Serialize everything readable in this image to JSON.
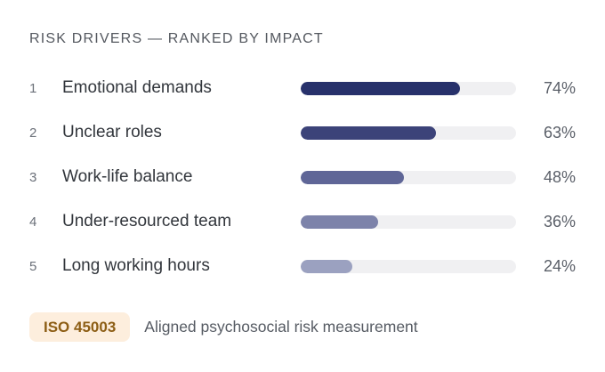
{
  "header": {
    "title": "RISK DRIVERS — RANKED BY IMPACT"
  },
  "chart_data": {
    "type": "bar",
    "orientation": "horizontal",
    "title": "RISK DRIVERS — RANKED BY IMPACT",
    "categories": [
      "Emotional demands",
      "Unclear roles",
      "Work-life balance",
      "Under-resourced team",
      "Long working hours"
    ],
    "values": [
      74,
      63,
      48,
      36,
      24
    ],
    "value_suffix": "%",
    "xlim": [
      0,
      100
    ],
    "grid": false,
    "legend": false,
    "bar_colors": [
      "#27316b",
      "#3c4379",
      "#5f6697",
      "#7d83aa",
      "#9ba1c0"
    ],
    "track_color": "#f0f0f2"
  },
  "rows": [
    {
      "rank": "1",
      "label": "Emotional demands",
      "pct": 74,
      "pct_label": "74%",
      "color": "#27316b"
    },
    {
      "rank": "2",
      "label": "Unclear roles",
      "pct": 63,
      "pct_label": "63%",
      "color": "#3c4379"
    },
    {
      "rank": "3",
      "label": "Work-life balance",
      "pct": 48,
      "pct_label": "48%",
      "color": "#5f6697"
    },
    {
      "rank": "4",
      "label": "Under-resourced team",
      "pct": 36,
      "pct_label": "36%",
      "color": "#7d83aa"
    },
    {
      "rank": "5",
      "label": "Long working hours",
      "pct": 24,
      "pct_label": "24%",
      "color": "#9ba1c0"
    }
  ],
  "footer": {
    "badge": "ISO 45003",
    "caption": "Aligned psychosocial risk measurement"
  },
  "colors": {
    "background": "#ffffff",
    "title_text": "#54585f",
    "rank_text": "#6b7079",
    "label_text": "#32363c",
    "pct_text": "#5a5f68",
    "track": "#f0f0f2",
    "badge_bg": "#fdeedd",
    "badge_text": "#8d5e15",
    "caption_text": "#565b63"
  }
}
